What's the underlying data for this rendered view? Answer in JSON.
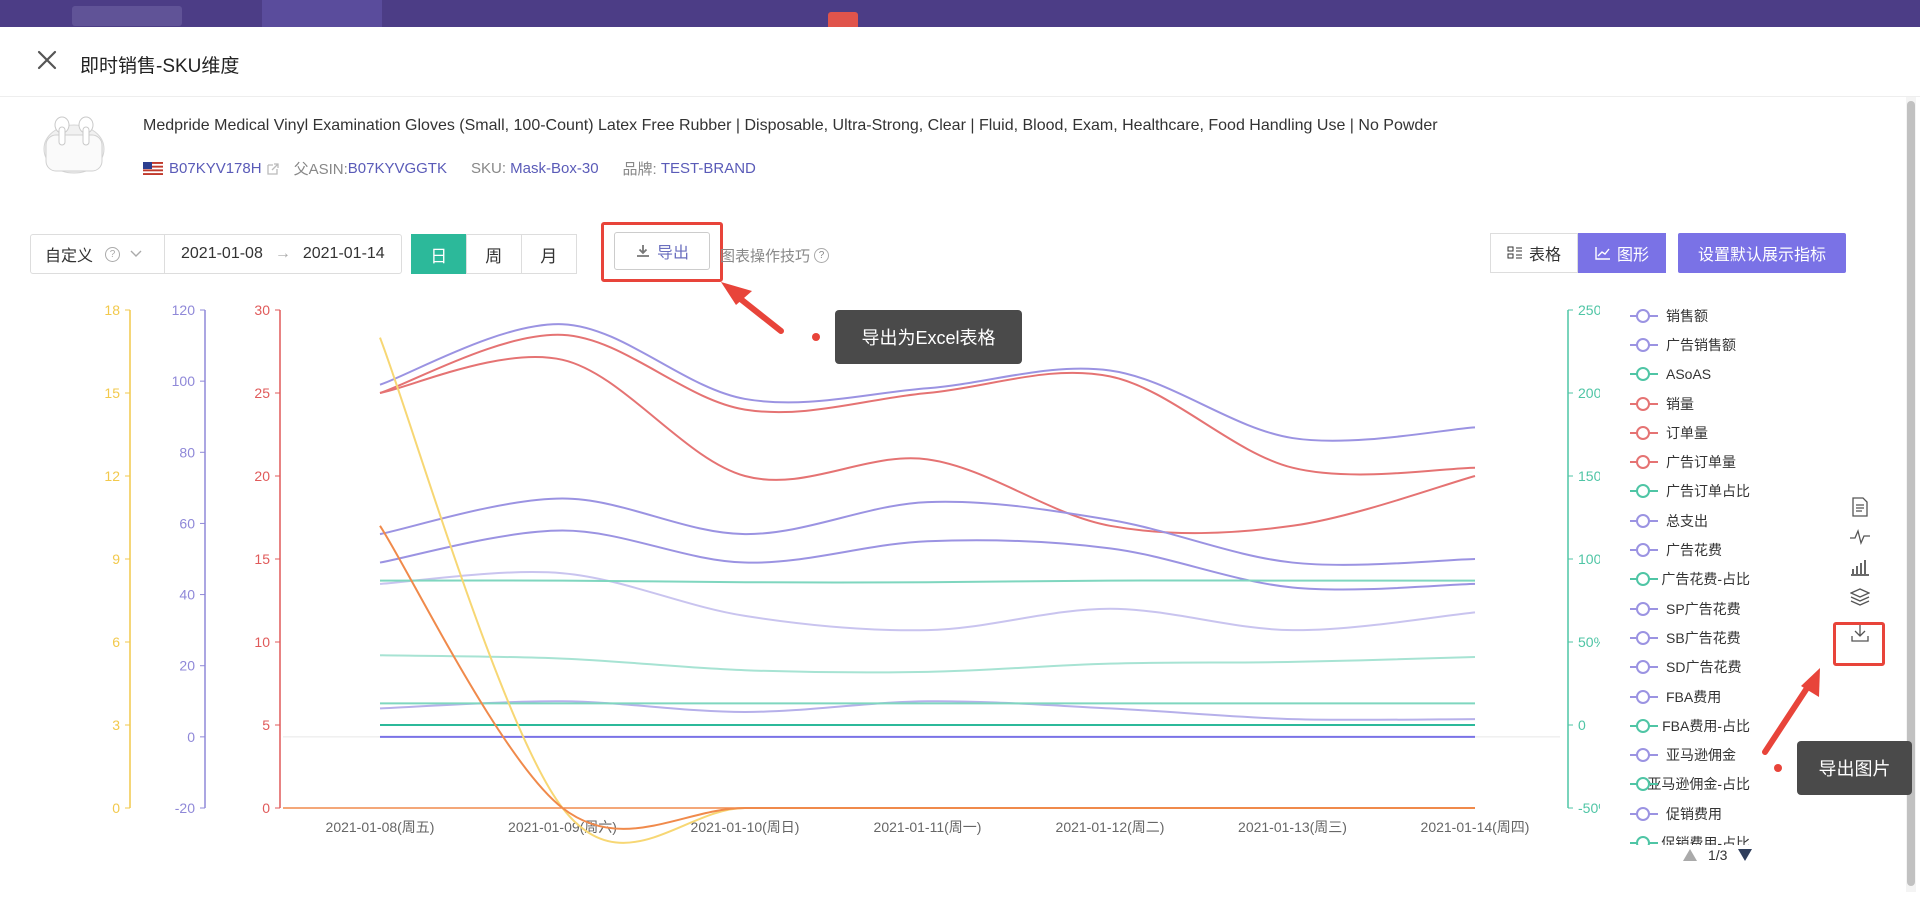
{
  "modal": {
    "title": "即时销售-SKU维度"
  },
  "product": {
    "title": "Medpride Medical Vinyl Examination Gloves (Small, 100-Count) Latex Free Rubber | Disposable, Ultra-Strong, Clear | Fluid, Blood, Exam, Healthcare, Food Handling Use | No Powder",
    "asin": "B07KYV178H",
    "parent_asin_label": "父ASIN:",
    "parent_asin": "B07KYVGGTK",
    "sku_label": "SKU:",
    "sku": "Mask-Box-30",
    "brand_label": "品牌:",
    "brand": "TEST-BRAND"
  },
  "toolbar": {
    "range_type": "自定义",
    "start_date": "2021-01-08",
    "end_date": "2021-01-14",
    "arrow": "→",
    "granularity": [
      "日",
      "周",
      "月"
    ],
    "active_granularity": "日",
    "export_label": "导出",
    "tips_label": "图表操作技巧",
    "table_label": "表格",
    "chart_label": "图形",
    "settings_label": "设置默认展示指标"
  },
  "annotations": {
    "export_tooltip": "导出为Excel表格",
    "download_tooltip": "导出图片"
  },
  "colors": {
    "accent_green": "#2cb99a",
    "accent_purple": "#7a72e6",
    "highlight_red": "#e8443a"
  },
  "chart_data": {
    "type": "line",
    "x": [
      "2021-01-08(周五)",
      "2021-01-09(周六)",
      "2021-01-10(周日)",
      "2021-01-11(周一)",
      "2021-01-12(周二)",
      "2021-01-13(周三)",
      "2021-01-14(周四)"
    ],
    "axes": [
      {
        "color": "#f2c94c",
        "ticks": [
          "18",
          "15",
          "12",
          "9",
          "6",
          "3",
          "0"
        ]
      },
      {
        "color": "#8f88d8",
        "ticks": [
          "120",
          "100",
          "80",
          "60",
          "40",
          "20",
          "0",
          "-20"
        ]
      },
      {
        "color": "#e05a5a",
        "ticks": [
          "30",
          "25",
          "20",
          "15",
          "10",
          "5",
          "0"
        ]
      },
      {
        "color": "#4fc5a5",
        "ticks": [
          "250%",
          "200%",
          "150%",
          "100%",
          "50%",
          "0",
          "-50%"
        ]
      }
    ],
    "axis_ranges": {
      "yellow": [
        0,
        18
      ],
      "purple": [
        -20,
        120
      ],
      "red": [
        0,
        30
      ],
      "green": [
        -50,
        250
      ]
    },
    "series": [
      {
        "axis": "purple",
        "color": "#9b93e2",
        "values": [
          99,
          116,
          95,
          98,
          103,
          84,
          87
        ]
      },
      {
        "axis": "red",
        "color": "#e57373",
        "values": [
          25,
          28.5,
          24,
          25,
          26,
          20.5,
          20.5
        ]
      },
      {
        "axis": "red",
        "color": "#e57373",
        "values": [
          25,
          27,
          20,
          21,
          17,
          17,
          20
        ]
      },
      {
        "axis": "purple",
        "color": "#9b93e2",
        "values": [
          57,
          67,
          57,
          66,
          61,
          49,
          50
        ]
      },
      {
        "axis": "purple",
        "color": "#9b93e2",
        "values": [
          49,
          58,
          49,
          55,
          53,
          42,
          43
        ]
      },
      {
        "axis": "purple",
        "color": "#c9c4ef",
        "values": [
          43,
          46,
          34,
          30,
          36,
          30,
          35
        ]
      },
      {
        "axis": "green",
        "color": "#7fd6bf",
        "values": [
          87,
          87,
          86,
          86,
          87,
          87,
          87
        ]
      },
      {
        "axis": "green",
        "color": "#a7e3d3",
        "values": [
          42,
          40,
          33,
          32,
          37,
          38,
          41
        ]
      },
      {
        "axis": "purple",
        "color": "#b6b0ea",
        "values": [
          8,
          10,
          7,
          10,
          8,
          5,
          5
        ]
      },
      {
        "axis": "green",
        "color": "#7fd6bf",
        "values": [
          13,
          13,
          13,
          13,
          13,
          13,
          13
        ]
      },
      {
        "axis": "green",
        "color": "#2cb99a",
        "values": [
          0,
          0,
          0,
          0,
          0,
          0,
          0
        ]
      },
      {
        "axis": "purple",
        "color": "#7a72e6",
        "values": [
          0,
          0,
          0,
          0,
          0,
          0,
          0
        ]
      },
      {
        "axis": "yellow",
        "color": "#f7d774",
        "values": [
          17,
          0,
          0,
          0,
          0,
          0,
          0
        ]
      },
      {
        "axis": "red",
        "color": "#f08a4b",
        "values": [
          17,
          0,
          0,
          0,
          0,
          0,
          0
        ]
      }
    ],
    "grid": false,
    "legend_position": "right"
  },
  "legend": {
    "items": [
      {
        "label": "销售额",
        "color": "#9b93e2"
      },
      {
        "label": "广告销售额",
        "color": "#9b93e2"
      },
      {
        "label": "ASoAS",
        "color": "#4fc5a5"
      },
      {
        "label": "销量",
        "color": "#e57373"
      },
      {
        "label": "订单量",
        "color": "#e57373"
      },
      {
        "label": "广告订单量",
        "color": "#e57373"
      },
      {
        "label": "广告订单占比",
        "color": "#4fc5a5"
      },
      {
        "label": "总支出",
        "color": "#9b93e2"
      },
      {
        "label": "广告花费",
        "color": "#9b93e2"
      },
      {
        "label": "广告花费-占比",
        "color": "#4fc5a5"
      },
      {
        "label": "SP广告花费",
        "color": "#9b93e2"
      },
      {
        "label": "SB广告花费",
        "color": "#9b93e2"
      },
      {
        "label": "SD广告花费",
        "color": "#9b93e2"
      },
      {
        "label": "FBA费用",
        "color": "#9b93e2"
      },
      {
        "label": "FBA费用-占比",
        "color": "#4fc5a5"
      },
      {
        "label": "亚马逊佣金",
        "color": "#9b93e2"
      },
      {
        "label": "亚马逊佣金-占比",
        "color": "#4fc5a5"
      },
      {
        "label": "促销费用",
        "color": "#9b93e2"
      },
      {
        "label": "促销费用-占比",
        "color": "#4fc5a5"
      }
    ],
    "page": "1/3"
  },
  "tool_icons": [
    "data-view-icon",
    "line-switch-icon",
    "bar-switch-icon",
    "stack-icon",
    "download-icon"
  ]
}
